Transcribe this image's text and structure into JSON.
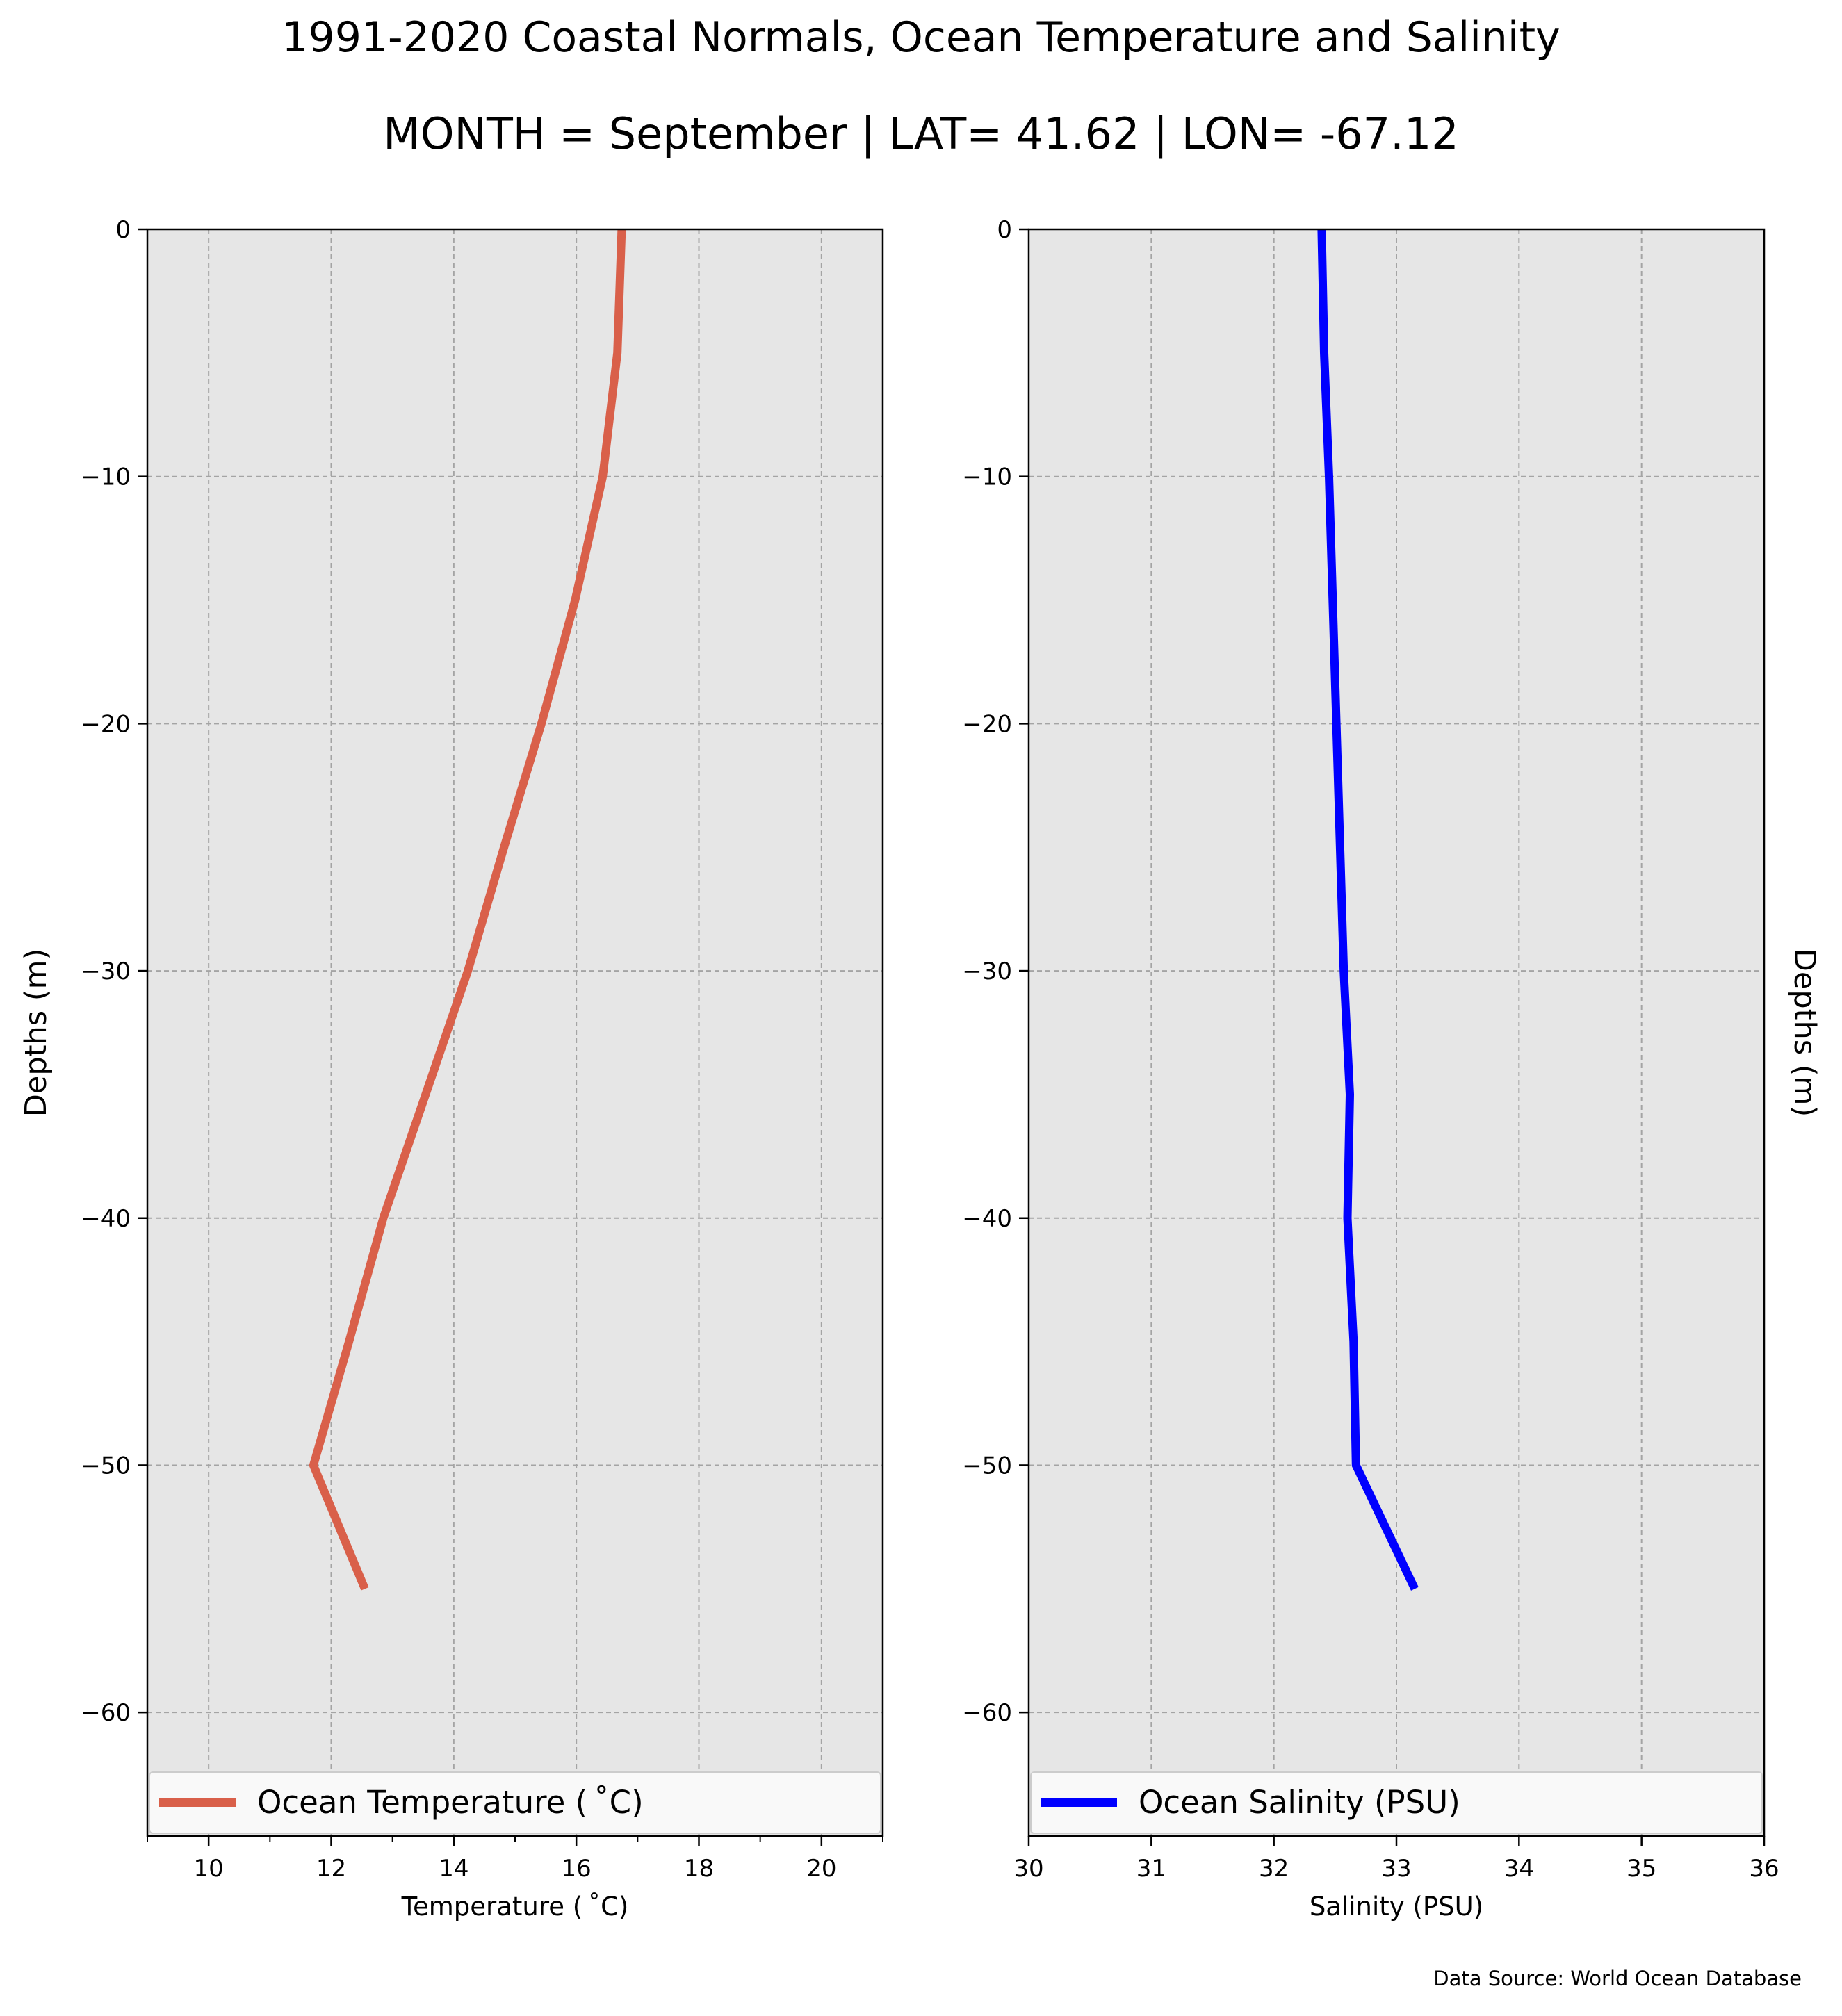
{
  "figure": {
    "title": "1991-2020 Coastal Normals, Ocean Temperature and Salinity",
    "subtitle": "MONTH = September | LAT= 41.62 | LON= -67.12",
    "source": "Data Source: World Ocean Database"
  },
  "chart_data": [
    {
      "type": "line",
      "xlabel": "Temperature ($^\\circ$C)",
      "xlabel_display": "Temperature ( ˚C)",
      "ylabel": "Depths (m)",
      "ylabel_side": "left",
      "xlim": [
        9,
        21
      ],
      "ylim": [
        -65,
        0
      ],
      "xticks": [
        10,
        12,
        14,
        16,
        18,
        20
      ],
      "xtick_labels": [
        "10",
        "12",
        "14",
        "16",
        "18",
        "20"
      ],
      "xminor_ticks": [
        9,
        11,
        13,
        15,
        17,
        19,
        21
      ],
      "yticks": [
        0,
        -10,
        -20,
        -30,
        -40,
        -50,
        -60
      ],
      "ytick_labels": [
        "0",
        "−10",
        "−20",
        "−30",
        "−40",
        "−50",
        "−60"
      ],
      "grid": true,
      "background": "#e6e6e6",
      "legend_position": "lower center",
      "series": [
        {
          "name": "Ocean Temperature ($^\\circ$C)",
          "legend_label": "Ocean Temperature ( ˚C)",
          "color": "#d9604a",
          "x": [
            16.74,
            16.67,
            16.43,
            15.98,
            15.43,
            14.82,
            14.23,
            13.54,
            12.85,
            12.29,
            11.71,
            12.55
          ],
          "y": [
            0,
            -5,
            -10,
            -15,
            -20,
            -25,
            -30,
            -35,
            -40,
            -45,
            -50,
            -55
          ]
        }
      ]
    },
    {
      "type": "line",
      "xlabel": "Salinity (PSU)",
      "ylabel": "Depths (m)",
      "ylabel_side": "right",
      "xlim": [
        30,
        36
      ],
      "ylim": [
        -65,
        0
      ],
      "xticks": [
        30,
        31,
        32,
        33,
        34,
        35,
        36
      ],
      "xtick_labels": [
        "30",
        "31",
        "32",
        "33",
        "34",
        "35",
        "36"
      ],
      "yticks": [
        0,
        -10,
        -20,
        -30,
        -40,
        -50,
        -60
      ],
      "ytick_labels": [
        "0",
        "−10",
        "−20",
        "−30",
        "−40",
        "−50",
        "−60"
      ],
      "grid": true,
      "background": "#e6e6e6",
      "legend_position": "lower center",
      "series": [
        {
          "name": "Ocean Salinity (PSU)",
          "legend_label": "Ocean Salinity (PSU)",
          "color": "#0000ff",
          "x": [
            32.39,
            32.41,
            32.45,
            32.48,
            32.51,
            32.54,
            32.57,
            32.62,
            32.6,
            32.65,
            32.67,
            33.15
          ],
          "y": [
            0,
            -5,
            -10,
            -15,
            -20,
            -25,
            -30,
            -35,
            -40,
            -45,
            -50,
            -55
          ]
        }
      ]
    }
  ]
}
